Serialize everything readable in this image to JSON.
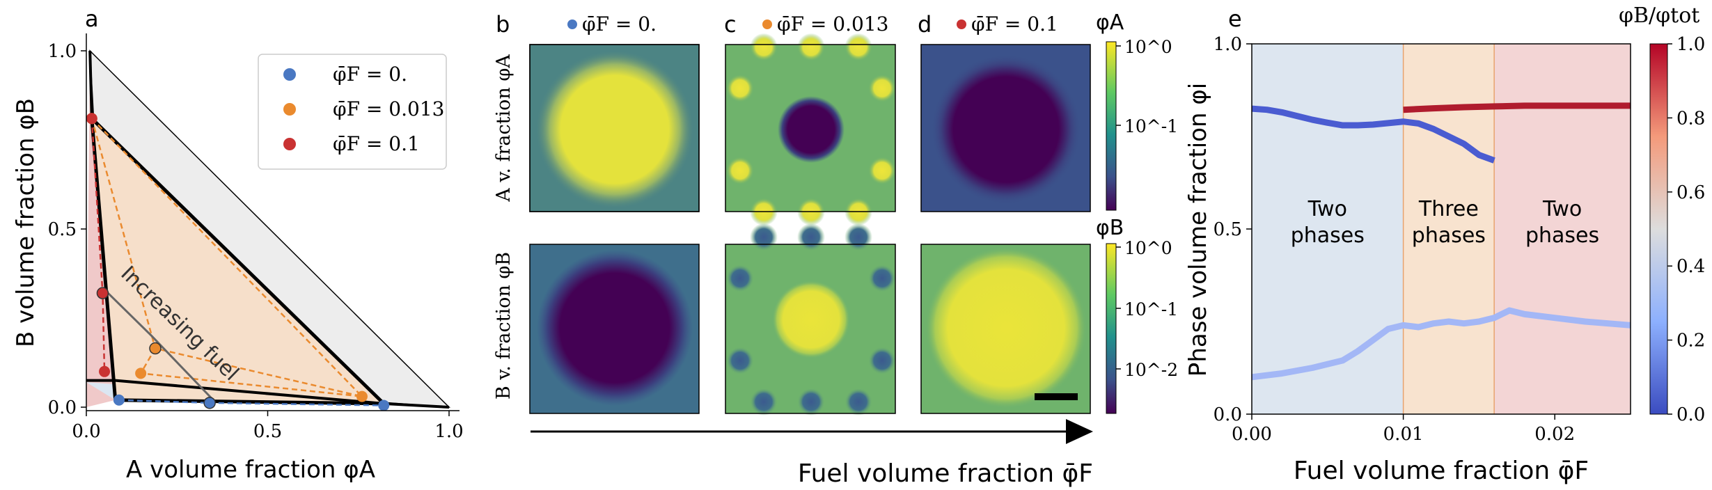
{
  "panel_labels": {
    "a": "a",
    "b": "b",
    "c": "c",
    "d": "d",
    "e": "e"
  },
  "colors": {
    "phase_fill": "#f6dfca",
    "gray_fill": "#ededed",
    "red_fill": "#f0c9c9",
    "blue_fill": "#dbe6f2",
    "series_zero": "#4a78c2",
    "series_mid": "#ea8a2e",
    "series_high": "#c93232",
    "region_blue": "#dde6f0",
    "region_orange": "#f8e3cf",
    "region_red": "#f3d5d5"
  },
  "panel_b_titles": {
    "b": "φ̄F = 0.",
    "c": "φ̄F = 0.013",
    "d": "φ̄F = 0.1"
  },
  "row_labels": {
    "top": "A v. fraction φA",
    "bottom": "B v. fraction φB"
  },
  "colorbar_a": {
    "title": "φA",
    "ticks": [
      "10^0",
      "10^-1"
    ]
  },
  "colorbar_b": {
    "title": "φB",
    "ticks": [
      "10^0",
      "10^-1",
      "10^-2"
    ]
  },
  "arrow_label": "Fuel volume fraction φ̄F",
  "chart_data": [
    {
      "type": "scatter",
      "panel": "a",
      "xlabel": "A volume fraction φA",
      "ylabel": "B volume fraction φB",
      "xlim": [
        0,
        1.0
      ],
      "ylim": [
        0,
        1.0
      ],
      "xticks": [
        "0.0",
        "0.5",
        "1.0"
      ],
      "yticks": [
        "0.0",
        "0.5",
        "1.0"
      ],
      "legend": [
        {
          "label": "φ̄F = 0.",
          "color": "#4a78c2"
        },
        {
          "label": "φ̄F = 0.013",
          "color": "#ea8a2e"
        },
        {
          "label": "φ̄F = 0.1",
          "color": "#c93232"
        }
      ],
      "annotation": "Increasing fuel",
      "triangle": [
        [
          0.015,
          0.81
        ],
        [
          0.08,
          0.02
        ],
        [
          0.82,
          0.01
        ]
      ],
      "series": [
        {
          "name": "φ̄F = 0.",
          "points": [
            [
              0.09,
              0.02
            ],
            [
              0.34,
              0.012
            ],
            [
              0.82,
              0.005
            ]
          ]
        },
        {
          "name": "φ̄F = 0.013",
          "points": [
            [
              0.015,
              0.81
            ],
            [
              0.19,
              0.165
            ],
            [
              0.15,
              0.095
            ],
            [
              0.76,
              0.03
            ]
          ]
        },
        {
          "name": "φ̄F = 0.1",
          "points": [
            [
              0.015,
              0.81
            ],
            [
              0.045,
              0.32
            ],
            [
              0.05,
              0.1
            ]
          ]
        }
      ]
    },
    {
      "type": "line",
      "panel": "e",
      "xlabel": "Fuel volume fraction φ̄F",
      "ylabel": "Phase volume fraction φi",
      "xlim": [
        0,
        0.025
      ],
      "ylim": [
        0,
        1.0
      ],
      "xticks": [
        "0.00",
        "0.01",
        "0.02"
      ],
      "yticks": [
        "0.0",
        "0.5",
        "1.0"
      ],
      "colorbar_title": "φB/φtot",
      "colorbar_ticks": [
        "0.0",
        "0.2",
        "0.4",
        "0.6",
        "0.8",
        "1.0"
      ],
      "regions": [
        {
          "label": "Two phases",
          "x": [
            0,
            0.01
          ]
        },
        {
          "label": "Three phases",
          "x": [
            0.01,
            0.016
          ]
        },
        {
          "label": "Two phases",
          "x": [
            0.016,
            0.025
          ]
        }
      ],
      "series": [
        {
          "x": [
            0,
            0.001,
            0.002,
            0.003,
            0.004,
            0.005,
            0.006,
            0.007,
            0.008,
            0.009,
            0.01,
            0.011,
            0.012,
            0.013,
            0.014,
            0.015,
            0.016
          ],
          "y": [
            0.825,
            0.822,
            0.815,
            0.805,
            0.795,
            0.787,
            0.78,
            0.78,
            0.782,
            0.786,
            0.79,
            0.785,
            0.77,
            0.75,
            0.73,
            0.7,
            0.685
          ]
        },
        {
          "x": [
            0.01,
            0.012,
            0.014,
            0.016,
            0.018,
            0.02,
            0.022,
            0.025
          ],
          "y": [
            0.822,
            0.826,
            0.829,
            0.831,
            0.833,
            0.833,
            0.833,
            0.833
          ]
        },
        {
          "x": [
            0,
            0.002,
            0.004,
            0.006,
            0.007,
            0.008,
            0.009,
            0.01,
            0.011,
            0.012,
            0.013,
            0.014,
            0.015,
            0.016,
            0.017,
            0.018,
            0.02,
            0.022,
            0.025
          ],
          "y": [
            0.1,
            0.11,
            0.125,
            0.145,
            0.17,
            0.2,
            0.23,
            0.24,
            0.235,
            0.245,
            0.25,
            0.245,
            0.25,
            0.26,
            0.28,
            0.27,
            0.26,
            0.25,
            0.24
          ]
        }
      ]
    }
  ]
}
